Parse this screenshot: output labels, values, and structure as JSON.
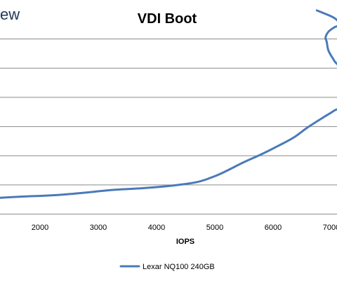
{
  "watermark": {
    "text": "ew"
  },
  "chart_data": {
    "type": "line",
    "title": "VDI Boot",
    "xlabel": "IOPS",
    "ylabel": "",
    "xlim": [
      1300,
      7100
    ],
    "ylim": [
      0,
      7
    ],
    "x_ticks": [
      "2000",
      "3000",
      "4000",
      "5000",
      "6000",
      "7000"
    ],
    "grid": true,
    "legend_position": "bottom",
    "series": [
      {
        "name": "Lexar NQ100 240GB",
        "color": "#4a7ab8",
        "x": [
          1250,
          1700,
          2200,
          2700,
          3200,
          3700,
          4200,
          4700,
          5000,
          5200,
          5500,
          5800,
          6100,
          6350,
          6600,
          6850,
          7050,
          7150,
          7150,
          7050,
          6950,
          6920,
          6900,
          6950,
          7050,
          7150,
          7050,
          6850,
          6750
        ],
        "values": [
          0.55,
          0.6,
          0.64,
          0.72,
          0.82,
          0.88,
          0.96,
          1.1,
          1.3,
          1.48,
          1.78,
          2.05,
          2.35,
          2.62,
          2.98,
          3.3,
          3.55,
          3.75,
          4.9,
          5.25,
          5.6,
          5.9,
          6.05,
          6.25,
          6.4,
          6.5,
          6.72,
          6.9,
          6.98
        ]
      }
    ]
  }
}
